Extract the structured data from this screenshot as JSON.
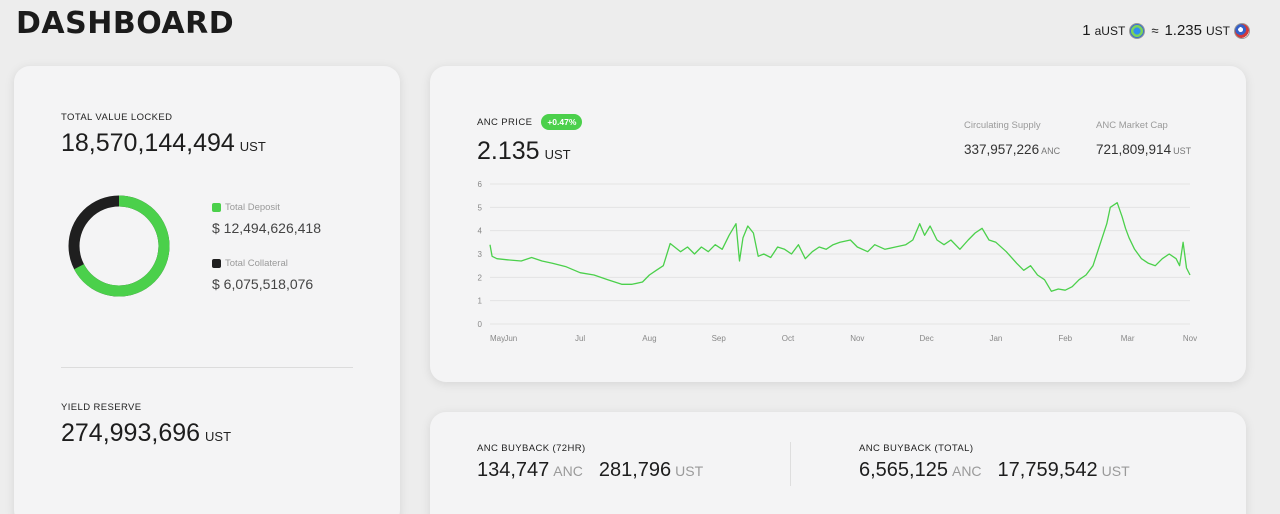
{
  "header": {
    "title": "DASHBOARD",
    "rate": {
      "left_amount": "1",
      "left_unit": "aUST",
      "approx": "≈",
      "right_amount": "1.235",
      "right_unit": "UST"
    }
  },
  "tvl": {
    "label": "TOTAL VALUE LOCKED",
    "value": "18,570,144,494",
    "unit": "UST",
    "deposit": {
      "label": "Total Deposit",
      "value": "$ 12,494,626,418",
      "color": "#4bd04b"
    },
    "collateral": {
      "label": "Total Collateral",
      "value": "$ 6,075,518,076",
      "color": "#1f1f1f"
    }
  },
  "yield_reserve": {
    "label": "YIELD RESERVE",
    "value": "274,993,696",
    "unit": "UST"
  },
  "anc_price": {
    "label": "ANC PRICE",
    "change": "+0.47%",
    "value": "2.135",
    "unit": "UST",
    "supply": {
      "label": "Circulating Supply",
      "value": "337,957,226",
      "unit": "ANC"
    },
    "market_cap": {
      "label": "ANC Market Cap",
      "value": "721,809,914",
      "unit": "UST"
    }
  },
  "buyback": {
    "recent": {
      "label": "ANC BUYBACK (72HR)",
      "anc": "134,747",
      "anc_unit": "ANC",
      "ust": "281,796",
      "ust_unit": "UST"
    },
    "total": {
      "label": "ANC BUYBACK (TOTAL)",
      "anc": "6,565,125",
      "anc_unit": "ANC",
      "ust": "17,759,542",
      "ust_unit": "UST"
    }
  },
  "chart_data": {
    "type": "line",
    "title": "",
    "xlabel": "",
    "ylabel": "",
    "ylim": [
      0,
      6
    ],
    "yticks": [
      0,
      1,
      2,
      3,
      4,
      5,
      6
    ],
    "xticks": [
      "May",
      "Jun",
      "Jul",
      "Aug",
      "Sep",
      "Oct",
      "Nov",
      "Dec",
      "Jan",
      "Feb",
      "Mar",
      "Nov"
    ],
    "xtick_pos": [
      0,
      0.3,
      1.3,
      2.3,
      3.3,
      4.3,
      5.3,
      6.3,
      7.3,
      8.3,
      9.2,
      10.1
    ],
    "xlim": [
      0,
      10.1
    ],
    "grid": true,
    "color": "#4bd04b",
    "series": [
      {
        "x": [
          0,
          0.03,
          0.1,
          0.25,
          0.45,
          0.6,
          0.75,
          0.9,
          1.1,
          1.3,
          1.5,
          1.7,
          1.9,
          2.05,
          2.2,
          2.3,
          2.4,
          2.5,
          2.6,
          2.75,
          2.85,
          2.95,
          3.05,
          3.15,
          3.25,
          3.35,
          3.45,
          3.55,
          3.6,
          3.65,
          3.72,
          3.8,
          3.87,
          3.95,
          4.05,
          4.15,
          4.25,
          4.35,
          4.45,
          4.55,
          4.65,
          4.75,
          4.85,
          4.95,
          5.05,
          5.2,
          5.3,
          5.45,
          5.55,
          5.7,
          5.85,
          6.0,
          6.1,
          6.2,
          6.27,
          6.35,
          6.45,
          6.55,
          6.65,
          6.78,
          6.9,
          7.0,
          7.1,
          7.2,
          7.3,
          7.45,
          7.6,
          7.7,
          7.8,
          7.9,
          8.0,
          8.1,
          8.2,
          8.3,
          8.4,
          8.5,
          8.6,
          8.7,
          8.8,
          8.9,
          8.95,
          9.05,
          9.12,
          9.17,
          9.22,
          9.3,
          9.4,
          9.5,
          9.6,
          9.7,
          9.8,
          9.9,
          9.95,
          10.0,
          10.05,
          10.1
        ],
        "y": [
          3.4,
          2.9,
          2.8,
          2.75,
          2.7,
          2.85,
          2.7,
          2.6,
          2.45,
          2.2,
          2.1,
          1.9,
          1.7,
          1.7,
          1.8,
          2.1,
          2.3,
          2.5,
          3.45,
          3.1,
          3.3,
          3.0,
          3.3,
          3.1,
          3.4,
          3.2,
          3.8,
          4.3,
          2.7,
          3.7,
          4.2,
          3.9,
          2.9,
          3.0,
          2.85,
          3.3,
          3.2,
          3.0,
          3.4,
          2.8,
          3.1,
          3.3,
          3.2,
          3.4,
          3.5,
          3.6,
          3.3,
          3.1,
          3.4,
          3.2,
          3.3,
          3.4,
          3.6,
          4.3,
          3.8,
          4.2,
          3.6,
          3.4,
          3.6,
          3.2,
          3.6,
          3.9,
          4.1,
          3.6,
          3.5,
          3.1,
          2.6,
          2.3,
          2.5,
          2.1,
          1.9,
          1.4,
          1.5,
          1.45,
          1.6,
          1.9,
          2.1,
          2.5,
          3.4,
          4.3,
          5.0,
          5.2,
          4.6,
          4.1,
          3.7,
          3.2,
          2.8,
          2.6,
          2.5,
          2.8,
          3.0,
          2.8,
          2.5,
          3.5,
          2.4,
          2.1
        ]
      }
    ]
  }
}
